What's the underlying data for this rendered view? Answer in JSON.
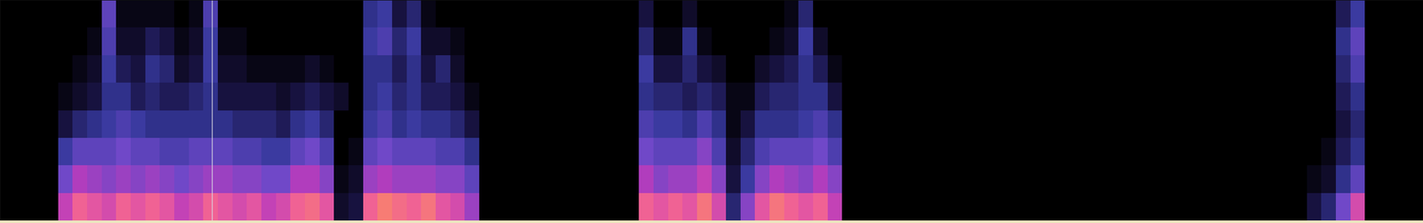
{
  "chart_data": {
    "type": "heatmap",
    "tick_labels": false,
    "grid": false,
    "xlim": [
      0,
      98
    ],
    "ylim": [
      0,
      8
    ],
    "zlim": [
      0,
      100
    ],
    "colors": [
      "#000000",
      "#1a1446",
      "#35389c",
      "#7048c8",
      "#b83cbc",
      "#ee5c9c",
      "#ff9a50"
    ],
    "cursor": 14.6,
    "cells": [
      [
        0,
        0,
        0,
        0,
        0,
        0,
        0,
        0
      ],
      [
        0,
        0,
        0,
        0,
        0,
        0,
        0,
        0
      ],
      [
        0,
        0,
        0,
        0,
        0,
        0,
        0,
        0
      ],
      [
        0,
        0,
        0,
        0,
        0,
        0,
        0,
        0
      ],
      [
        70,
        50,
        35,
        15,
        5,
        0,
        0,
        0
      ],
      [
        85,
        65,
        45,
        25,
        10,
        5,
        0,
        0
      ],
      [
        80,
        60,
        45,
        30,
        15,
        10,
        5,
        0
      ],
      [
        75,
        55,
        45,
        35,
        30,
        35,
        40,
        45
      ],
      [
        85,
        60,
        50,
        40,
        30,
        20,
        10,
        5
      ],
      [
        80,
        55,
        45,
        35,
        20,
        15,
        10,
        5
      ],
      [
        85,
        60,
        45,
        30,
        25,
        30,
        20,
        5
      ],
      [
        80,
        55,
        40,
        30,
        20,
        25,
        15,
        5
      ],
      [
        70,
        50,
        40,
        30,
        20,
        10,
        5,
        0
      ],
      [
        75,
        55,
        45,
        30,
        25,
        15,
        10,
        5
      ],
      [
        85,
        60,
        45,
        30,
        30,
        35,
        35,
        40
      ],
      [
        80,
        60,
        45,
        30,
        15,
        10,
        5,
        0
      ],
      [
        75,
        55,
        40,
        25,
        15,
        10,
        5,
        0
      ],
      [
        80,
        55,
        40,
        25,
        15,
        5,
        0,
        0
      ],
      [
        70,
        50,
        35,
        25,
        15,
        5,
        0,
        0
      ],
      [
        75,
        50,
        35,
        20,
        10,
        5,
        0,
        0
      ],
      [
        85,
        65,
        45,
        30,
        15,
        5,
        0,
        0
      ],
      [
        88,
        65,
        50,
        35,
        20,
        10,
        0,
        0
      ],
      [
        80,
        55,
        40,
        25,
        15,
        5,
        0,
        0
      ],
      [
        10,
        5,
        0,
        0,
        10,
        0,
        0,
        0
      ],
      [
        15,
        10,
        5,
        0,
        0,
        0,
        0,
        0
      ],
      [
        85,
        60,
        45,
        35,
        30,
        30,
        35,
        30
      ],
      [
        92,
        65,
        50,
        40,
        35,
        30,
        40,
        35
      ],
      [
        88,
        60,
        45,
        30,
        25,
        20,
        25,
        15
      ],
      [
        85,
        60,
        45,
        35,
        30,
        30,
        35,
        25
      ],
      [
        90,
        60,
        45,
        30,
        20,
        15,
        10,
        5
      ],
      [
        80,
        55,
        40,
        30,
        20,
        25,
        10,
        0
      ],
      [
        75,
        55,
        40,
        25,
        15,
        10,
        5,
        0
      ],
      [
        60,
        45,
        30,
        15,
        5,
        0,
        0,
        0
      ],
      [
        0,
        0,
        0,
        0,
        0,
        0,
        0,
        0
      ],
      [
        0,
        0,
        0,
        0,
        0,
        0,
        0,
        0
      ],
      [
        0,
        0,
        0,
        0,
        0,
        0,
        0,
        0
      ],
      [
        0,
        0,
        0,
        0,
        0,
        0,
        0,
        0
      ],
      [
        0,
        0,
        0,
        0,
        0,
        0,
        0,
        0
      ],
      [
        0,
        0,
        0,
        0,
        0,
        0,
        0,
        0
      ],
      [
        0,
        0,
        0,
        0,
        0,
        0,
        0,
        0
      ],
      [
        0,
        0,
        0,
        0,
        0,
        0,
        0,
        0
      ],
      [
        0,
        0,
        0,
        0,
        0,
        0,
        0,
        0
      ],
      [
        0,
        0,
        0,
        0,
        0,
        0,
        0,
        0
      ],
      [
        0,
        0,
        0,
        0,
        0,
        0,
        0,
        0
      ],
      [
        85,
        65,
        50,
        40,
        30,
        35,
        25,
        15
      ],
      [
        80,
        55,
        45,
        35,
        25,
        15,
        5,
        0
      ],
      [
        85,
        60,
        45,
        35,
        25,
        15,
        5,
        0
      ],
      [
        80,
        60,
        45,
        30,
        20,
        25,
        30,
        10
      ],
      [
        90,
        70,
        55,
        40,
        25,
        15,
        5,
        0
      ],
      [
        75,
        55,
        40,
        30,
        20,
        10,
        0,
        0
      ],
      [
        25,
        15,
        10,
        5,
        5,
        0,
        0,
        0
      ],
      [
        55,
        35,
        25,
        15,
        5,
        0,
        0,
        0
      ],
      [
        80,
        55,
        40,
        30,
        20,
        10,
        0,
        0
      ],
      [
        90,
        65,
        45,
        30,
        25,
        15,
        5,
        0
      ],
      [
        85,
        60,
        45,
        30,
        25,
        20,
        10,
        5
      ],
      [
        80,
        55,
        45,
        35,
        30,
        30,
        35,
        25
      ],
      [
        85,
        65,
        50,
        40,
        30,
        20,
        10,
        0
      ],
      [
        70,
        55,
        40,
        30,
        15,
        5,
        0,
        0
      ],
      [
        0,
        0,
        0,
        0,
        0,
        0,
        0,
        0
      ],
      [
        0,
        0,
        0,
        0,
        0,
        0,
        0,
        0
      ],
      [
        0,
        0,
        0,
        0,
        0,
        0,
        0,
        0
      ],
      [
        0,
        0,
        0,
        0,
        0,
        0,
        0,
        0
      ],
      [
        0,
        0,
        0,
        0,
        0,
        0,
        0,
        0
      ],
      [
        0,
        0,
        0,
        0,
        0,
        0,
        0,
        0
      ],
      [
        0,
        0,
        0,
        0,
        0,
        0,
        0,
        0
      ],
      [
        0,
        0,
        0,
        0,
        0,
        0,
        0,
        0
      ],
      [
        0,
        0,
        0,
        0,
        0,
        0,
        0,
        0
      ],
      [
        0,
        0,
        0,
        0,
        0,
        0,
        0,
        0
      ],
      [
        0,
        0,
        0,
        0,
        0,
        0,
        0,
        0
      ],
      [
        0,
        0,
        0,
        0,
        0,
        0,
        0,
        0
      ],
      [
        0,
        0,
        0,
        0,
        0,
        0,
        0,
        0
      ],
      [
        0,
        0,
        0,
        0,
        0,
        0,
        0,
        0
      ],
      [
        0,
        0,
        0,
        0,
        0,
        0,
        0,
        0
      ],
      [
        0,
        0,
        0,
        0,
        0,
        0,
        0,
        0
      ],
      [
        0,
        0,
        0,
        0,
        0,
        0,
        0,
        0
      ],
      [
        0,
        0,
        0,
        0,
        0,
        0,
        0,
        0
      ],
      [
        0,
        0,
        0,
        0,
        0,
        0,
        0,
        0
      ],
      [
        0,
        0,
        0,
        0,
        0,
        0,
        0,
        0
      ],
      [
        0,
        0,
        0,
        0,
        0,
        0,
        0,
        0
      ],
      [
        0,
        0,
        0,
        0,
        0,
        0,
        0,
        0
      ],
      [
        0,
        0,
        0,
        0,
        0,
        0,
        0,
        0
      ],
      [
        0,
        0,
        0,
        0,
        0,
        0,
        0,
        0
      ],
      [
        0,
        0,
        0,
        0,
        0,
        0,
        0,
        0
      ],
      [
        0,
        0,
        0,
        0,
        0,
        0,
        0,
        0
      ],
      [
        0,
        0,
        0,
        0,
        0,
        0,
        0,
        0
      ],
      [
        0,
        0,
        0,
        0,
        0,
        0,
        0,
        0
      ],
      [
        0,
        0,
        0,
        0,
        0,
        0,
        0,
        0
      ],
      [
        0,
        0,
        0,
        0,
        0,
        0,
        0,
        0
      ],
      [
        0,
        0,
        0,
        0,
        0,
        0,
        0,
        0
      ],
      [
        0,
        0,
        0,
        0,
        0,
        0,
        0,
        0
      ],
      [
        15,
        5,
        0,
        0,
        0,
        0,
        0,
        0
      ],
      [
        25,
        10,
        5,
        0,
        0,
        0,
        0,
        0
      ],
      [
        50,
        30,
        20,
        15,
        20,
        25,
        30,
        20
      ],
      [
        75,
        45,
        30,
        25,
        30,
        40,
        45,
        35
      ]
    ]
  }
}
